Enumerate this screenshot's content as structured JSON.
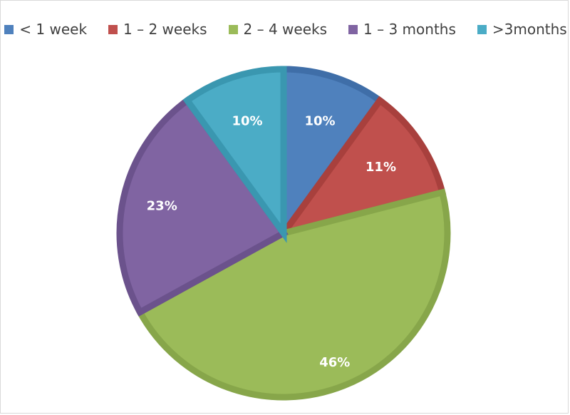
{
  "chart_data": {
    "type": "pie",
    "categories": [
      "< 1 week",
      "1 – 2 weeks",
      "2 – 4 weeks",
      "1 – 3 months",
      ">3months"
    ],
    "values": [
      10,
      11,
      46,
      23,
      10
    ],
    "labels": [
      "10%",
      "11%",
      "46%",
      "23%",
      "10%"
    ],
    "colors": [
      "#4f81bd",
      "#c0504d",
      "#9bbb59",
      "#8064a2",
      "#4bacc6"
    ],
    "border_colors": [
      "#3f6ea8",
      "#a8403d",
      "#87a64a",
      "#6b528c",
      "#3a97b0"
    ],
    "legend": "top",
    "title": ""
  }
}
